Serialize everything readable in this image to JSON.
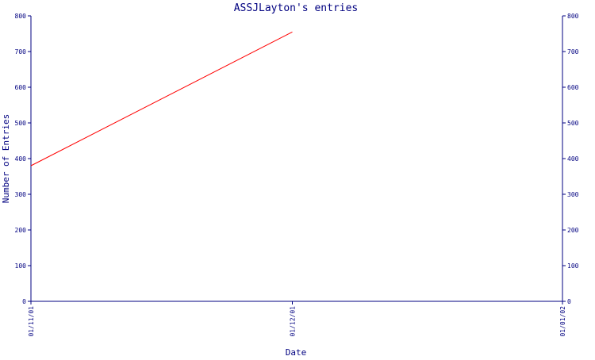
{
  "chart_data": {
    "type": "line",
    "title": "ASSJLayton's entries",
    "xlabel": "Date",
    "ylabel": "Number of Entries",
    "x_ticks": [
      "01/11/01",
      "01/12/01",
      "01/01/02"
    ],
    "xlim": [
      "01/11/01",
      "01/01/02"
    ],
    "ylim": [
      0,
      800
    ],
    "y_ticks": [
      0,
      100,
      200,
      300,
      400,
      500,
      600,
      700,
      800
    ],
    "y_axis_right_mirror": true,
    "grid": false,
    "series": [
      {
        "color": "#ff0000",
        "x": [
          "01/11/01",
          "01/12/01"
        ],
        "y": [
          380,
          755
        ]
      }
    ]
  },
  "colors": {
    "axis": "#000080",
    "title": "#000080",
    "line": "#ff0000",
    "background": "#ffffff"
  }
}
